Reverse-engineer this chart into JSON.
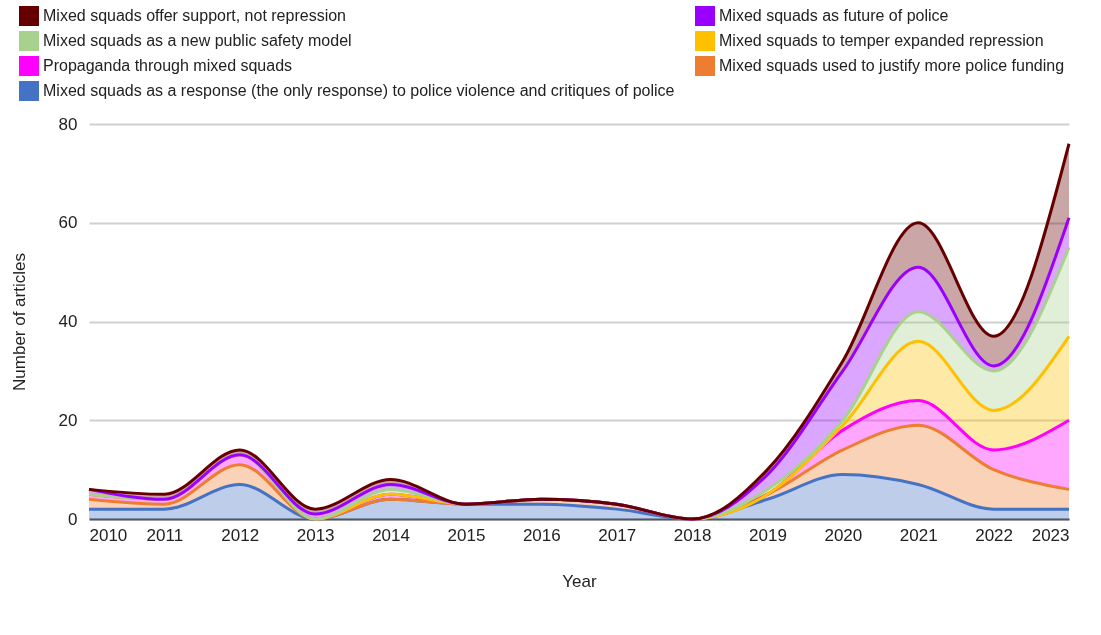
{
  "chart_data": {
    "type": "area",
    "stacked": true,
    "xlabel": "Year",
    "ylabel": "Number of articles",
    "x": [
      2010,
      2011,
      2012,
      2013,
      2014,
      2015,
      2016,
      2017,
      2018,
      2019,
      2020,
      2021,
      2022,
      2023
    ],
    "xlim": [
      2010,
      2023
    ],
    "xticks": [
      2010,
      2011,
      2012,
      2013,
      2014,
      2015,
      2016,
      2017,
      2018,
      2019,
      2020,
      2021,
      2022,
      2023
    ],
    "ylim": [
      0,
      80
    ],
    "yticks": [
      0,
      20,
      40,
      60,
      80
    ],
    "grid": "y",
    "legend": "top",
    "series": [
      {
        "name": "Mixed squads as a response (the only response) to police violence and critiques of police",
        "color": "#4472c4",
        "values": [
          2,
          2,
          7,
          0,
          4,
          3,
          3,
          2,
          0,
          4,
          9,
          7,
          2,
          2
        ]
      },
      {
        "name": "Mixed squads used to justify more police funding",
        "color": "#ed7d31",
        "values": [
          2,
          1,
          4,
          0,
          0,
          0,
          1,
          1,
          0,
          1,
          5,
          12,
          8,
          4
        ]
      },
      {
        "name": "Propaganda through mixed squads",
        "color": "#ff00ff",
        "values": [
          1,
          1,
          2,
          0,
          1,
          0,
          0,
          0,
          0,
          0,
          4,
          5,
          4,
          14
        ]
      },
      {
        "name": "Mixed squads to temper expanded repression",
        "color": "#ffc000",
        "values": [
          0,
          0,
          0,
          0,
          0,
          0,
          0,
          0,
          0,
          0,
          1,
          12,
          8,
          17
        ]
      },
      {
        "name": "Mixed squads as a new public safety model",
        "color": "#a9d18e",
        "values": [
          0,
          0,
          0,
          0,
          1,
          0,
          0,
          0,
          0,
          1,
          1,
          6,
          8,
          18
        ]
      },
      {
        "name": "Mixed squads as future of police",
        "color": "#9900ff",
        "values": [
          1,
          0,
          0,
          1,
          1,
          0,
          0,
          0,
          0,
          3,
          10,
          9,
          1,
          6
        ]
      },
      {
        "name": "Mixed squads offer support, not repression",
        "color": "#660000",
        "values": [
          0,
          1,
          1,
          1,
          1,
          0,
          0,
          0,
          0,
          1,
          2,
          9,
          6,
          15
        ]
      }
    ]
  }
}
